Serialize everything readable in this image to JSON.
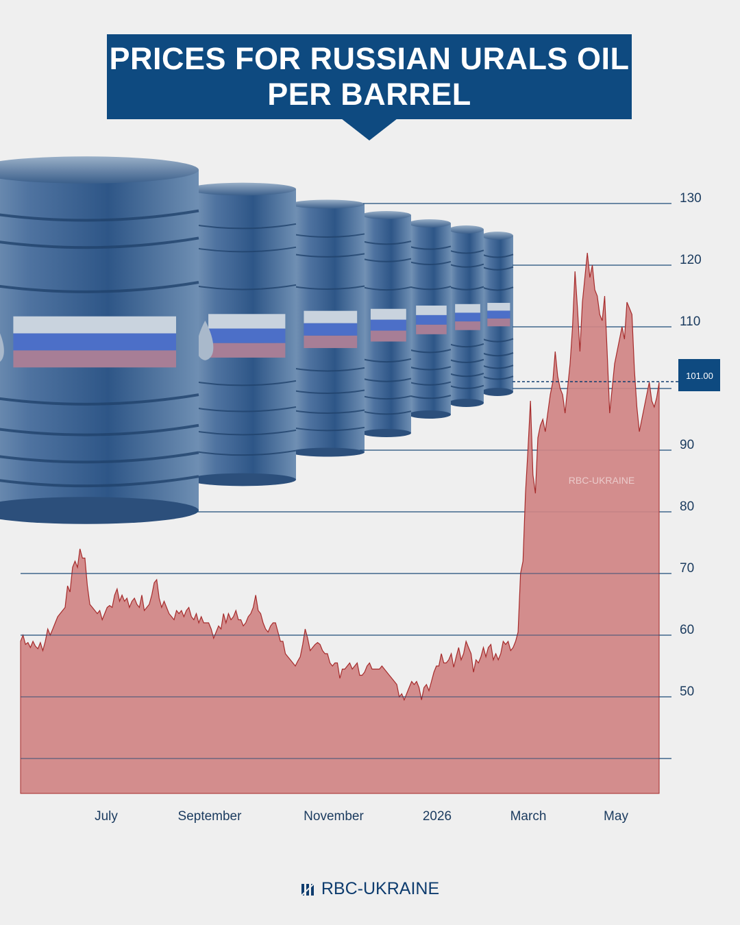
{
  "title": {
    "line1": "PRICES FOR RUSSIAN URALS OIL",
    "line2": "PER BARREL"
  },
  "brand": {
    "name": "RBC-UKRAINE",
    "watermark": "RBC-UKRAINE"
  },
  "colors": {
    "brand_blue": "#0e4a80",
    "area_fill": "#d08484",
    "area_line": "#a52a2a",
    "grid": "#1c4a78",
    "background": "#efefef"
  },
  "illustration": {
    "icon": "oil-barrels-russian-flag"
  },
  "chart_data": {
    "type": "area",
    "y_ticks": [
      130,
      120,
      110,
      90,
      80,
      70,
      60,
      50
    ],
    "x_tick_labels": [
      "July",
      "September",
      "November",
      "2026",
      "March",
      "May"
    ],
    "ylim": [
      35,
      135
    ],
    "grid": true,
    "current_value_label": "101.00",
    "current_value": 101,
    "series": [
      {
        "values": [
          59,
          60,
          58.5,
          58.8,
          58,
          59,
          58.2,
          57.8,
          58.8,
          57.5,
          59,
          61,
          60,
          61,
          62,
          63,
          63.5,
          64,
          64.5,
          68,
          67,
          71,
          72,
          71,
          74,
          72.5,
          72.5,
          68,
          65,
          64.5,
          64,
          63.5,
          64,
          62.5,
          63.5,
          64.5,
          64.8,
          64.5,
          66.5,
          67.5,
          65.5,
          66.5,
          65.5,
          66,
          64.5,
          65.5,
          66,
          65,
          64.5,
          66.5,
          64,
          64.5,
          65,
          66.5,
          68.5,
          69,
          66,
          64.5,
          65.5,
          64.5,
          63.5,
          63,
          62.5,
          64,
          63.5,
          64,
          63,
          64,
          64.5,
          63,
          62.5,
          63.5,
          62,
          63,
          62,
          62,
          62,
          61,
          59.5,
          60.5,
          61.5,
          61,
          63.5,
          62,
          63.5,
          62.5,
          63,
          64,
          62.5,
          62.5,
          61.5,
          62,
          63,
          63.5,
          64.5,
          66.5,
          64,
          63.5,
          62,
          61,
          60.5,
          61.5,
          62,
          62,
          60.5,
          59,
          59,
          57,
          56.5,
          56,
          55.5,
          55,
          55.8,
          56.5,
          58.5,
          61,
          59.5,
          57.5,
          58,
          58.5,
          58.8,
          58.5,
          57.5,
          57,
          57,
          55.5,
          55,
          55.5,
          55.5,
          53,
          54.5,
          54.5,
          55,
          55.5,
          54.5,
          55,
          55.5,
          53.5,
          53.5,
          54,
          55,
          55.5,
          54.5,
          54.5,
          54.5,
          54.5,
          55,
          54.5,
          54,
          53.5,
          53,
          52.5,
          52,
          50,
          50.5,
          49.5,
          50.5,
          51.5,
          52.5,
          52,
          52.5,
          51.5,
          49.5,
          51.5,
          52,
          51,
          52.5,
          54,
          55,
          55,
          57,
          55.5,
          55.5,
          56,
          57,
          54.8,
          56.5,
          58,
          56,
          57,
          59,
          58,
          57,
          54,
          56,
          55.5,
          56.5,
          58,
          56.5,
          58,
          58.5,
          56,
          57,
          56,
          57,
          59,
          58.5,
          59,
          57.5,
          58,
          59,
          60.5,
          70,
          72,
          83,
          90,
          98,
          86,
          83,
          92,
          94,
          95,
          93,
          96,
          99,
          101,
          106,
          102,
          100,
          99,
          96,
          100,
          104,
          110,
          119,
          113,
          106,
          114,
          118,
          122,
          118,
          120,
          116,
          115,
          112,
          111,
          115,
          106,
          96,
          100,
          104,
          106,
          108,
          110,
          108,
          114,
          113,
          112,
          103,
          97,
          93,
          95,
          97,
          99,
          101,
          98,
          97,
          98.5,
          101
        ]
      }
    ]
  }
}
